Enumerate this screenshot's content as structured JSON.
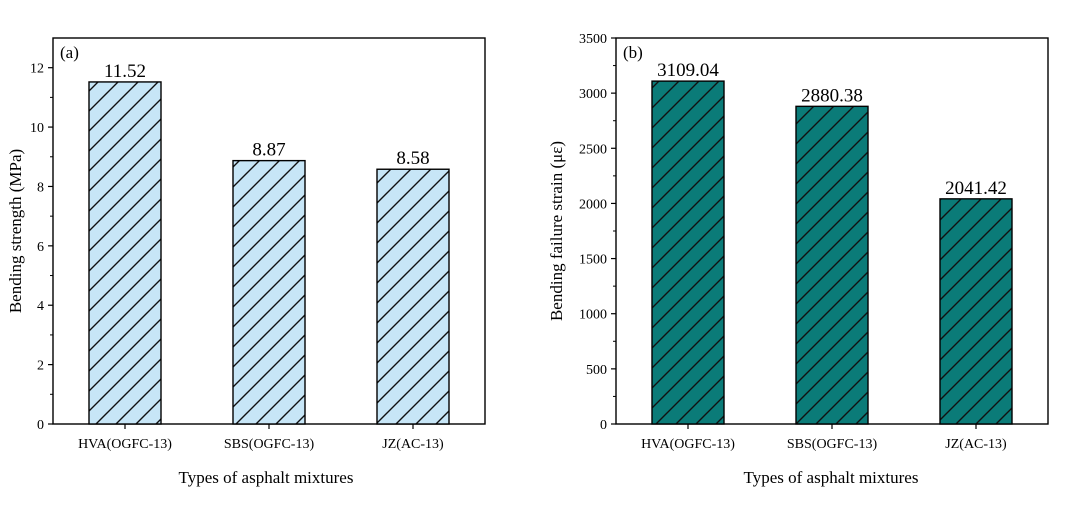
{
  "chart_data": [
    {
      "type": "bar",
      "panel_label": "(a)",
      "categories": [
        "HVA(OGFC-13)",
        "SBS(OGFC-13)",
        "JZ(AC-13)"
      ],
      "values": [
        11.52,
        8.87,
        8.58
      ],
      "data_labels": [
        "11.52",
        "8.87",
        "8.58"
      ],
      "xlabel": "Types of asphalt mixtures",
      "ylabel": "Bending strength (MPa)",
      "ylim": [
        0,
        13
      ],
      "yticks": [
        0,
        2,
        4,
        6,
        8,
        10,
        12
      ],
      "ytick_labels": [
        "0",
        "2",
        "4",
        "6",
        "8",
        "10",
        "12"
      ],
      "bar_color": "#c7e6f7",
      "hatch": "diagonal",
      "grid": false
    },
    {
      "type": "bar",
      "panel_label": "(b)",
      "categories": [
        "HVA(OGFC-13)",
        "SBS(OGFC-13)",
        "JZ(AC-13)"
      ],
      "values": [
        3109.04,
        2880.38,
        2041.42
      ],
      "data_labels": [
        "3109.04",
        "2880.38",
        "2041.42"
      ],
      "xlabel": "Types of asphalt mixtures",
      "ylabel": "Bending failure strain (με)",
      "ylim": [
        0,
        3500
      ],
      "yticks": [
        0,
        500,
        1000,
        1500,
        2000,
        2500,
        3000,
        3500
      ],
      "ytick_labels": [
        "0",
        "500",
        "1000",
        "1500",
        "2000",
        "2500",
        "3000",
        "3500"
      ],
      "bar_color": "#0b7b78",
      "hatch": "diagonal",
      "grid": false
    }
  ]
}
